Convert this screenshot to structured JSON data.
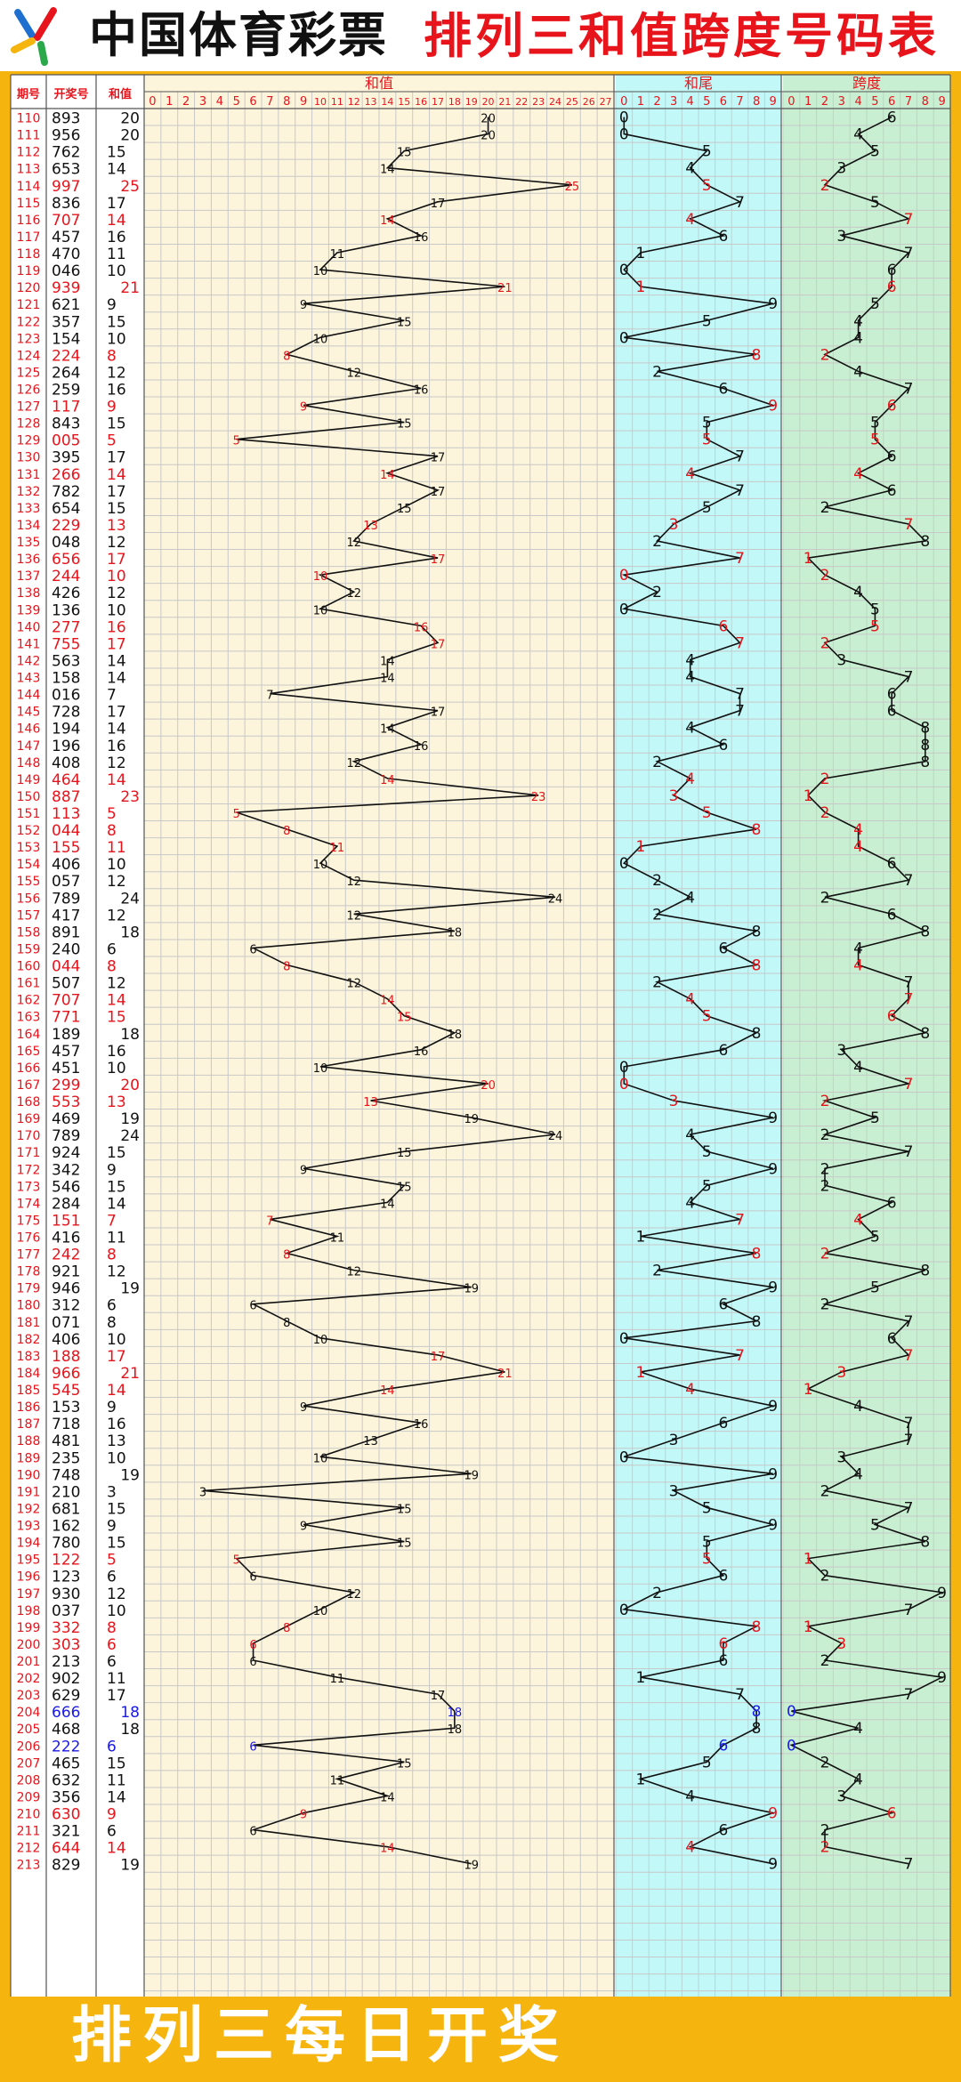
{
  "header": {
    "brand": "中国体育彩票",
    "title": "排列三和值跨度号码表"
  },
  "footer": {
    "text": "排列三每日开奖"
  },
  "colors": {
    "red": "#e8141c",
    "blue": "#1a1ae6",
    "black": "#111111"
  },
  "columns": {
    "issue": "期号",
    "draw": "开奖号",
    "sum": "和值"
  },
  "chart_data": [
    {
      "type": "line",
      "title": "和值",
      "xlim": [
        0,
        27
      ],
      "ticks": [
        "0",
        "1",
        "2",
        "3",
        "4",
        "5",
        "6",
        "7",
        "8",
        "9",
        "10",
        "11",
        "12",
        "13",
        "14",
        "15",
        "16",
        "17",
        "18",
        "19",
        "20",
        "21",
        "22",
        "23",
        "24",
        "25",
        "26",
        "27"
      ]
    },
    {
      "type": "line",
      "title": "和尾",
      "xlim": [
        0,
        9
      ],
      "ticks": [
        "0",
        "1",
        "2",
        "3",
        "4",
        "5",
        "6",
        "7",
        "8",
        "9"
      ]
    },
    {
      "type": "line",
      "title": "跨度",
      "xlim": [
        0,
        9
      ],
      "ticks": [
        "0",
        "1",
        "2",
        "3",
        "4",
        "5",
        "6",
        "7",
        "8",
        "9"
      ]
    }
  ],
  "rows": [
    {
      "issue": "110",
      "draw": "893",
      "sum": 20,
      "tail": 0,
      "span": 6,
      "c": "k"
    },
    {
      "issue": "111",
      "draw": "956",
      "sum": 20,
      "tail": 0,
      "span": 4,
      "c": "k"
    },
    {
      "issue": "112",
      "draw": "762",
      "sum": 15,
      "tail": 5,
      "span": 5,
      "c": "k"
    },
    {
      "issue": "113",
      "draw": "653",
      "sum": 14,
      "tail": 4,
      "span": 3,
      "c": "k"
    },
    {
      "issue": "114",
      "draw": "997",
      "sum": 25,
      "tail": 5,
      "span": 2,
      "c": "r"
    },
    {
      "issue": "115",
      "draw": "836",
      "sum": 17,
      "tail": 7,
      "span": 5,
      "c": "k"
    },
    {
      "issue": "116",
      "draw": "707",
      "sum": 14,
      "tail": 4,
      "span": 7,
      "c": "r"
    },
    {
      "issue": "117",
      "draw": "457",
      "sum": 16,
      "tail": 6,
      "span": 3,
      "c": "k"
    },
    {
      "issue": "118",
      "draw": "470",
      "sum": 11,
      "tail": 1,
      "span": 7,
      "c": "k"
    },
    {
      "issue": "119",
      "draw": "046",
      "sum": 10,
      "tail": 0,
      "span": 6,
      "c": "k"
    },
    {
      "issue": "120",
      "draw": "939",
      "sum": 21,
      "tail": 1,
      "span": 6,
      "c": "r"
    },
    {
      "issue": "121",
      "draw": "621",
      "sum": 9,
      "tail": 9,
      "span": 5,
      "c": "k"
    },
    {
      "issue": "122",
      "draw": "357",
      "sum": 15,
      "tail": 5,
      "span": 4,
      "c": "k"
    },
    {
      "issue": "123",
      "draw": "154",
      "sum": 10,
      "tail": 0,
      "span": 4,
      "c": "k"
    },
    {
      "issue": "124",
      "draw": "224",
      "sum": 8,
      "tail": 8,
      "span": 2,
      "c": "r"
    },
    {
      "issue": "125",
      "draw": "264",
      "sum": 12,
      "tail": 2,
      "span": 4,
      "c": "k"
    },
    {
      "issue": "126",
      "draw": "259",
      "sum": 16,
      "tail": 6,
      "span": 7,
      "c": "k"
    },
    {
      "issue": "127",
      "draw": "117",
      "sum": 9,
      "tail": 9,
      "span": 6,
      "c": "r"
    },
    {
      "issue": "128",
      "draw": "843",
      "sum": 15,
      "tail": 5,
      "span": 5,
      "c": "k"
    },
    {
      "issue": "129",
      "draw": "005",
      "sum": 5,
      "tail": 5,
      "span": 5,
      "c": "r"
    },
    {
      "issue": "130",
      "draw": "395",
      "sum": 17,
      "tail": 7,
      "span": 6,
      "c": "k"
    },
    {
      "issue": "131",
      "draw": "266",
      "sum": 14,
      "tail": 4,
      "span": 4,
      "c": "r"
    },
    {
      "issue": "132",
      "draw": "782",
      "sum": 17,
      "tail": 7,
      "span": 6,
      "c": "k"
    },
    {
      "issue": "133",
      "draw": "654",
      "sum": 15,
      "tail": 5,
      "span": 2,
      "c": "k"
    },
    {
      "issue": "134",
      "draw": "229",
      "sum": 13,
      "tail": 3,
      "span": 7,
      "c": "r"
    },
    {
      "issue": "135",
      "draw": "048",
      "sum": 12,
      "tail": 2,
      "span": 8,
      "c": "k"
    },
    {
      "issue": "136",
      "draw": "656",
      "sum": 17,
      "tail": 7,
      "span": 1,
      "c": "r"
    },
    {
      "issue": "137",
      "draw": "244",
      "sum": 10,
      "tail": 0,
      "span": 2,
      "c": "r"
    },
    {
      "issue": "138",
      "draw": "426",
      "sum": 12,
      "tail": 2,
      "span": 4,
      "c": "k"
    },
    {
      "issue": "139",
      "draw": "136",
      "sum": 10,
      "tail": 0,
      "span": 5,
      "c": "k"
    },
    {
      "issue": "140",
      "draw": "277",
      "sum": 16,
      "tail": 6,
      "span": 5,
      "c": "r"
    },
    {
      "issue": "141",
      "draw": "755",
      "sum": 17,
      "tail": 7,
      "span": 2,
      "c": "r"
    },
    {
      "issue": "142",
      "draw": "563",
      "sum": 14,
      "tail": 4,
      "span": 3,
      "c": "k"
    },
    {
      "issue": "143",
      "draw": "158",
      "sum": 14,
      "tail": 4,
      "span": 7,
      "c": "k"
    },
    {
      "issue": "144",
      "draw": "016",
      "sum": 7,
      "tail": 7,
      "span": 6,
      "c": "k"
    },
    {
      "issue": "145",
      "draw": "728",
      "sum": 17,
      "tail": 7,
      "span": 6,
      "c": "k"
    },
    {
      "issue": "146",
      "draw": "194",
      "sum": 14,
      "tail": 4,
      "span": 8,
      "c": "k"
    },
    {
      "issue": "147",
      "draw": "196",
      "sum": 16,
      "tail": 6,
      "span": 8,
      "c": "k"
    },
    {
      "issue": "148",
      "draw": "408",
      "sum": 12,
      "tail": 2,
      "span": 8,
      "c": "k"
    },
    {
      "issue": "149",
      "draw": "464",
      "sum": 14,
      "tail": 4,
      "span": 2,
      "c": "r"
    },
    {
      "issue": "150",
      "draw": "887",
      "sum": 23,
      "tail": 3,
      "span": 1,
      "c": "r"
    },
    {
      "issue": "151",
      "draw": "113",
      "sum": 5,
      "tail": 5,
      "span": 2,
      "c": "r"
    },
    {
      "issue": "152",
      "draw": "044",
      "sum": 8,
      "tail": 8,
      "span": 4,
      "c": "r"
    },
    {
      "issue": "153",
      "draw": "155",
      "sum": 11,
      "tail": 1,
      "span": 4,
      "c": "r"
    },
    {
      "issue": "154",
      "draw": "406",
      "sum": 10,
      "tail": 0,
      "span": 6,
      "c": "k"
    },
    {
      "issue": "155",
      "draw": "057",
      "sum": 12,
      "tail": 2,
      "span": 7,
      "c": "k"
    },
    {
      "issue": "156",
      "draw": "789",
      "sum": 24,
      "tail": 4,
      "span": 2,
      "c": "k"
    },
    {
      "issue": "157",
      "draw": "417",
      "sum": 12,
      "tail": 2,
      "span": 6,
      "c": "k"
    },
    {
      "issue": "158",
      "draw": "891",
      "sum": 18,
      "tail": 8,
      "span": 8,
      "c": "k"
    },
    {
      "issue": "159",
      "draw": "240",
      "sum": 6,
      "tail": 6,
      "span": 4,
      "c": "k"
    },
    {
      "issue": "160",
      "draw": "044",
      "sum": 8,
      "tail": 8,
      "span": 4,
      "c": "r"
    },
    {
      "issue": "161",
      "draw": "507",
      "sum": 12,
      "tail": 2,
      "span": 7,
      "c": "k"
    },
    {
      "issue": "162",
      "draw": "707",
      "sum": 14,
      "tail": 4,
      "span": 7,
      "c": "r"
    },
    {
      "issue": "163",
      "draw": "771",
      "sum": 15,
      "tail": 5,
      "span": 6,
      "c": "r"
    },
    {
      "issue": "164",
      "draw": "189",
      "sum": 18,
      "tail": 8,
      "span": 8,
      "c": "k"
    },
    {
      "issue": "165",
      "draw": "457",
      "sum": 16,
      "tail": 6,
      "span": 3,
      "c": "k"
    },
    {
      "issue": "166",
      "draw": "451",
      "sum": 10,
      "tail": 0,
      "span": 4,
      "c": "k"
    },
    {
      "issue": "167",
      "draw": "299",
      "sum": 20,
      "tail": 0,
      "span": 7,
      "c": "r"
    },
    {
      "issue": "168",
      "draw": "553",
      "sum": 13,
      "tail": 3,
      "span": 2,
      "c": "r"
    },
    {
      "issue": "169",
      "draw": "469",
      "sum": 19,
      "tail": 9,
      "span": 5,
      "c": "k"
    },
    {
      "issue": "170",
      "draw": "789",
      "sum": 24,
      "tail": 4,
      "span": 2,
      "c": "k"
    },
    {
      "issue": "171",
      "draw": "924",
      "sum": 15,
      "tail": 5,
      "span": 7,
      "c": "k"
    },
    {
      "issue": "172",
      "draw": "342",
      "sum": 9,
      "tail": 9,
      "span": 2,
      "c": "k"
    },
    {
      "issue": "173",
      "draw": "546",
      "sum": 15,
      "tail": 5,
      "span": 2,
      "c": "k"
    },
    {
      "issue": "174",
      "draw": "284",
      "sum": 14,
      "tail": 4,
      "span": 6,
      "c": "k"
    },
    {
      "issue": "175",
      "draw": "151",
      "sum": 7,
      "tail": 7,
      "span": 4,
      "c": "r"
    },
    {
      "issue": "176",
      "draw": "416",
      "sum": 11,
      "tail": 1,
      "span": 5,
      "c": "k"
    },
    {
      "issue": "177",
      "draw": "242",
      "sum": 8,
      "tail": 8,
      "span": 2,
      "c": "r"
    },
    {
      "issue": "178",
      "draw": "921",
      "sum": 12,
      "tail": 2,
      "span": 8,
      "c": "k"
    },
    {
      "issue": "179",
      "draw": "946",
      "sum": 19,
      "tail": 9,
      "span": 5,
      "c": "k"
    },
    {
      "issue": "180",
      "draw": "312",
      "sum": 6,
      "tail": 6,
      "span": 2,
      "c": "k"
    },
    {
      "issue": "181",
      "draw": "071",
      "sum": 8,
      "tail": 8,
      "span": 7,
      "c": "k"
    },
    {
      "issue": "182",
      "draw": "406",
      "sum": 10,
      "tail": 0,
      "span": 6,
      "c": "k"
    },
    {
      "issue": "183",
      "draw": "188",
      "sum": 17,
      "tail": 7,
      "span": 7,
      "c": "r"
    },
    {
      "issue": "184",
      "draw": "966",
      "sum": 21,
      "tail": 1,
      "span": 3,
      "c": "r"
    },
    {
      "issue": "185",
      "draw": "545",
      "sum": 14,
      "tail": 4,
      "span": 1,
      "c": "r"
    },
    {
      "issue": "186",
      "draw": "153",
      "sum": 9,
      "tail": 9,
      "span": 4,
      "c": "k"
    },
    {
      "issue": "187",
      "draw": "718",
      "sum": 16,
      "tail": 6,
      "span": 7,
      "c": "k"
    },
    {
      "issue": "188",
      "draw": "481",
      "sum": 13,
      "tail": 3,
      "span": 7,
      "c": "k"
    },
    {
      "issue": "189",
      "draw": "235",
      "sum": 10,
      "tail": 0,
      "span": 3,
      "c": "k"
    },
    {
      "issue": "190",
      "draw": "748",
      "sum": 19,
      "tail": 9,
      "span": 4,
      "c": "k"
    },
    {
      "issue": "191",
      "draw": "210",
      "sum": 3,
      "tail": 3,
      "span": 2,
      "c": "k"
    },
    {
      "issue": "192",
      "draw": "681",
      "sum": 15,
      "tail": 5,
      "span": 7,
      "c": "k"
    },
    {
      "issue": "193",
      "draw": "162",
      "sum": 9,
      "tail": 9,
      "span": 5,
      "c": "k"
    },
    {
      "issue": "194",
      "draw": "780",
      "sum": 15,
      "tail": 5,
      "span": 8,
      "c": "k"
    },
    {
      "issue": "195",
      "draw": "122",
      "sum": 5,
      "tail": 5,
      "span": 1,
      "c": "r"
    },
    {
      "issue": "196",
      "draw": "123",
      "sum": 6,
      "tail": 6,
      "span": 2,
      "c": "k"
    },
    {
      "issue": "197",
      "draw": "930",
      "sum": 12,
      "tail": 2,
      "span": 9,
      "c": "k"
    },
    {
      "issue": "198",
      "draw": "037",
      "sum": 10,
      "tail": 0,
      "span": 7,
      "c": "k"
    },
    {
      "issue": "199",
      "draw": "332",
      "sum": 8,
      "tail": 8,
      "span": 1,
      "c": "r"
    },
    {
      "issue": "200",
      "draw": "303",
      "sum": 6,
      "tail": 6,
      "span": 3,
      "c": "r"
    },
    {
      "issue": "201",
      "draw": "213",
      "sum": 6,
      "tail": 6,
      "span": 2,
      "c": "k"
    },
    {
      "issue": "202",
      "draw": "902",
      "sum": 11,
      "tail": 1,
      "span": 9,
      "c": "k"
    },
    {
      "issue": "203",
      "draw": "629",
      "sum": 17,
      "tail": 7,
      "span": 7,
      "c": "k"
    },
    {
      "issue": "204",
      "draw": "666",
      "sum": 18,
      "tail": 8,
      "span": 0,
      "c": "b"
    },
    {
      "issue": "205",
      "draw": "468",
      "sum": 18,
      "tail": 8,
      "span": 4,
      "c": "k"
    },
    {
      "issue": "206",
      "draw": "222",
      "sum": 6,
      "tail": 6,
      "span": 0,
      "c": "b"
    },
    {
      "issue": "207",
      "draw": "465",
      "sum": 15,
      "tail": 5,
      "span": 2,
      "c": "k"
    },
    {
      "issue": "208",
      "draw": "632",
      "sum": 11,
      "tail": 1,
      "span": 4,
      "c": "k"
    },
    {
      "issue": "209",
      "draw": "356",
      "sum": 14,
      "tail": 4,
      "span": 3,
      "c": "k"
    },
    {
      "issue": "210",
      "draw": "630",
      "sum": 9,
      "tail": 9,
      "span": 6,
      "c": "r"
    },
    {
      "issue": "211",
      "draw": "321",
      "sum": 6,
      "tail": 6,
      "span": 2,
      "c": "k"
    },
    {
      "issue": "212",
      "draw": "644",
      "sum": 14,
      "tail": 4,
      "span": 2,
      "c": "r"
    },
    {
      "issue": "213",
      "draw": "829",
      "sum": 19,
      "tail": 9,
      "span": 7,
      "c": "k"
    }
  ]
}
